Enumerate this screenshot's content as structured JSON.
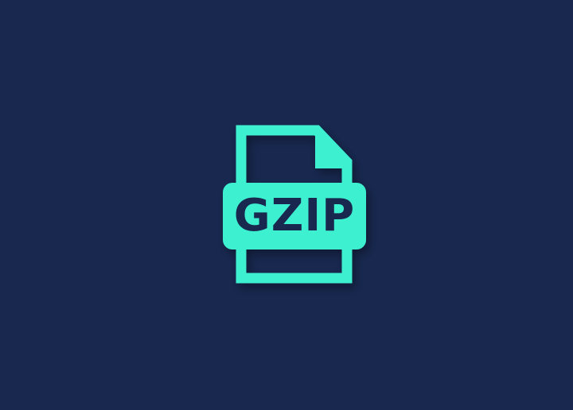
{
  "file_icon": {
    "label": "GZIP",
    "icon_name": "gzip-file-icon"
  },
  "colors": {
    "background": "#18284f",
    "accent": "#3ef0d0"
  }
}
